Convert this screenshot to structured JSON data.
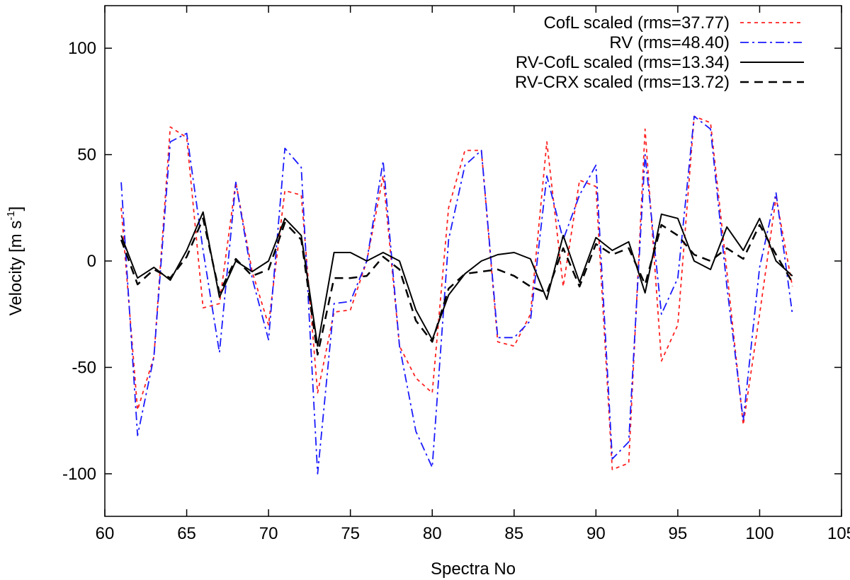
{
  "chart_data": {
    "type": "line",
    "title": "",
    "xlabel": "Spectra No",
    "ylabel": "Velocity [m s",
    "ylabel_sup": "-1",
    "ylabel_close": "]",
    "xlim": [
      60,
      105
    ],
    "ylim": [
      -120,
      120
    ],
    "xticks": [
      60,
      65,
      70,
      75,
      80,
      85,
      90,
      95,
      100,
      105
    ],
    "yticks": [
      -100,
      -50,
      0,
      50,
      100
    ],
    "legend_position": "top-right",
    "x": [
      61,
      62,
      63,
      64,
      65,
      66,
      67,
      68,
      69,
      70,
      71,
      72,
      73,
      74,
      75,
      76,
      77,
      78,
      79,
      80,
      81,
      82,
      83,
      84,
      85,
      86,
      87,
      88,
      89,
      90,
      91,
      92,
      93,
      94,
      95,
      96,
      97,
      98,
      99,
      100,
      101,
      102
    ],
    "series": [
      {
        "name": "CofL scaled (rms=37.77)",
        "color": "#ff2020",
        "dash": "short",
        "values": [
          25,
          -70,
          -45,
          63,
          58,
          -22,
          -20,
          37,
          -5,
          -30,
          33,
          31,
          -62,
          -24,
          -23,
          0,
          40,
          -40,
          -55,
          -62,
          25,
          52,
          52,
          -38,
          -40,
          -25,
          56,
          -12,
          38,
          35,
          -98,
          -95,
          62,
          -47,
          -30,
          68,
          65,
          -5,
          -77,
          -25,
          30,
          -12
        ]
      },
      {
        "name": "RV (rms=48.40)",
        "color": "#1a1aff",
        "dash": "dashdot",
        "values": [
          37,
          -82,
          -45,
          56,
          60,
          5,
          -43,
          37,
          -8,
          -37,
          53,
          44,
          -100,
          -20,
          -19,
          0,
          47,
          -40,
          -80,
          -97,
          10,
          45,
          52,
          -36,
          -36,
          -28,
          40,
          10,
          31,
          45,
          -93,
          -85,
          50,
          -25,
          -8,
          68,
          62,
          -12,
          -75,
          -3,
          32,
          -25
        ]
      },
      {
        "name": "RV-CofL scaled (rms=13.34)",
        "color": "#000000",
        "dash": "solid",
        "values": [
          12,
          -8,
          -3,
          -9,
          5,
          23,
          -17,
          0,
          -5,
          0,
          20,
          12,
          -40,
          4,
          4,
          0,
          4,
          0,
          -23,
          -37,
          -16,
          -6,
          0,
          3,
          4,
          1,
          -18,
          12,
          -10,
          11,
          5,
          9,
          -15,
          22,
          20,
          0,
          -4,
          16,
          5,
          20,
          0,
          -7
        ]
      },
      {
        "name": "RV-CRX scaled (rms=13.72)",
        "color": "#000000",
        "dash": "long",
        "values": [
          10,
          -11,
          -4,
          -8,
          2,
          20,
          -15,
          1,
          -7,
          -4,
          18,
          10,
          -44,
          -8,
          -8,
          -7,
          2,
          -4,
          -28,
          -38,
          -13,
          -6,
          -5,
          -4,
          -7,
          -12,
          -15,
          6,
          -12,
          8,
          3,
          6,
          -11,
          17,
          12,
          3,
          0,
          6,
          1,
          17,
          3,
          -10
        ]
      }
    ]
  }
}
